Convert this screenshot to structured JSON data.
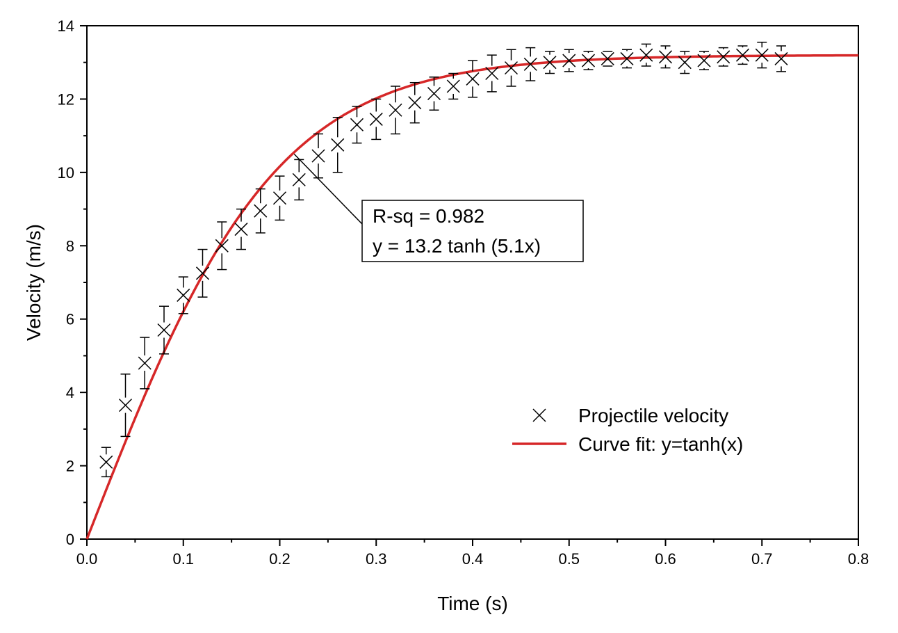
{
  "chart_data": {
    "type": "scatter",
    "title": "",
    "xlabel": "Time (s)",
    "ylabel": "Velocity (m/s)",
    "xlim": [
      0,
      0.8
    ],
    "ylim": [
      0,
      14
    ],
    "xticks": [
      "0.0",
      "0.1",
      "0.2",
      "0.3",
      "0.4",
      "0.5",
      "0.6",
      "0.7",
      "0.8"
    ],
    "yticks": [
      "0",
      "2",
      "4",
      "6",
      "8",
      "10",
      "12",
      "14"
    ],
    "grid": false,
    "legend_position": "bottom-right",
    "series": [
      {
        "name": "Projectile velocity",
        "kind": "scatter-with-error-bars",
        "marker": "x",
        "color": "#000000",
        "x": [
          0.02,
          0.04,
          0.06,
          0.08,
          0.1,
          0.12,
          0.14,
          0.16,
          0.18,
          0.2,
          0.22,
          0.24,
          0.26,
          0.28,
          0.3,
          0.32,
          0.34,
          0.36,
          0.38,
          0.4,
          0.42,
          0.44,
          0.46,
          0.48,
          0.5,
          0.52,
          0.54,
          0.56,
          0.58,
          0.6,
          0.62,
          0.64,
          0.66,
          0.68,
          0.7,
          0.72
        ],
        "y": [
          2.1,
          3.65,
          4.8,
          5.7,
          6.65,
          7.25,
          8.0,
          8.45,
          8.95,
          9.3,
          9.8,
          10.45,
          10.75,
          11.3,
          11.45,
          11.7,
          11.9,
          12.15,
          12.35,
          12.55,
          12.7,
          12.85,
          12.95,
          13.0,
          13.05,
          13.05,
          13.1,
          13.1,
          13.2,
          13.15,
          13.0,
          13.05,
          13.15,
          13.2,
          13.2,
          13.1
        ],
        "error": [
          0.4,
          0.85,
          0.7,
          0.65,
          0.5,
          0.65,
          0.65,
          0.55,
          0.6,
          0.6,
          0.55,
          0.6,
          0.75,
          0.5,
          0.55,
          0.65,
          0.55,
          0.45,
          0.35,
          0.5,
          0.5,
          0.5,
          0.45,
          0.3,
          0.3,
          0.25,
          0.2,
          0.25,
          0.3,
          0.3,
          0.3,
          0.25,
          0.25,
          0.25,
          0.35,
          0.35
        ]
      },
      {
        "name": "Curve fit: y=tanh(x)",
        "kind": "line",
        "color": "#d62728",
        "function": "13.2*tanh(5.1*x)",
        "A": 13.2,
        "k": 5.1,
        "x_range": [
          0,
          0.8
        ]
      }
    ],
    "annotation": {
      "lines": [
        "R-sq = 0.982",
        "y = 13.2 tanh (5.1x)"
      ],
      "pointer_to": {
        "x": 0.215,
        "y": 10.5
      }
    }
  }
}
